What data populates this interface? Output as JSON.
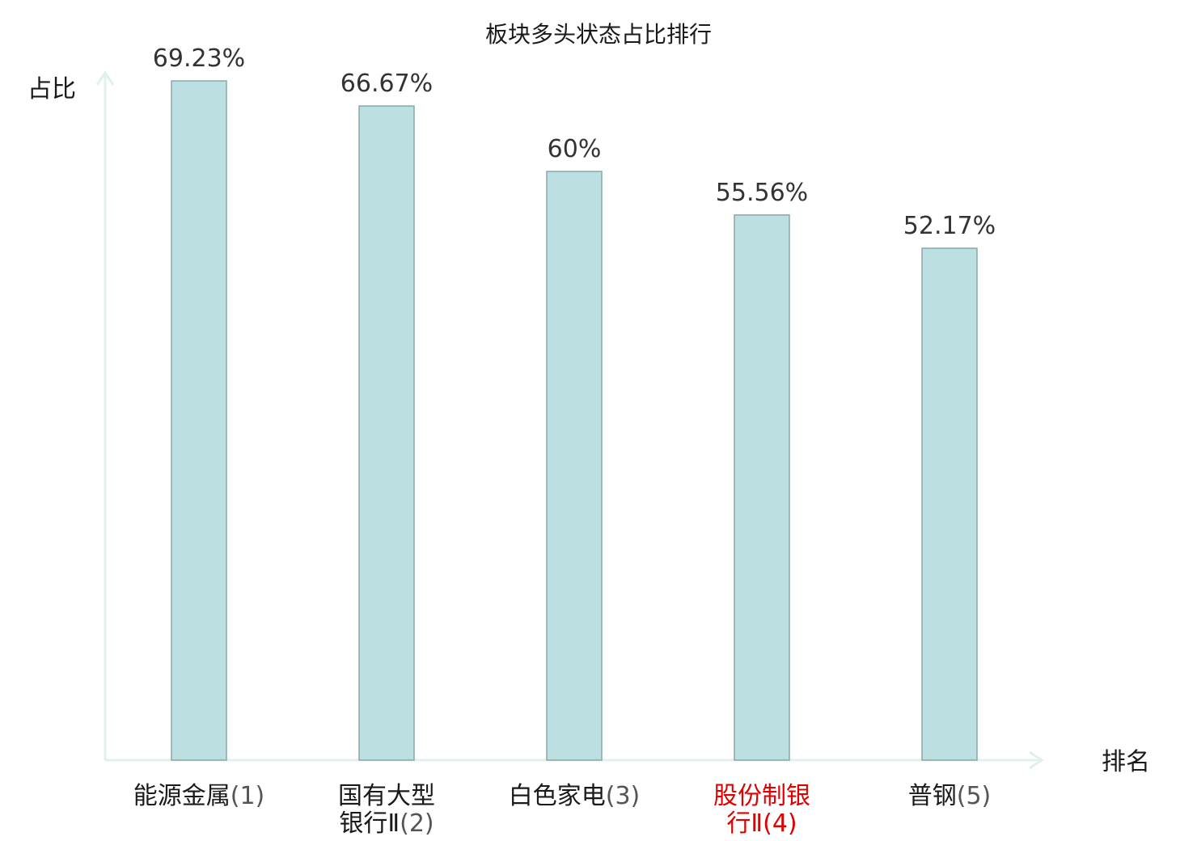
{
  "chart_data": {
    "type": "bar",
    "title": "板块多头状态占比排行",
    "ylabel": "占比",
    "xlabel": "排名",
    "categories": [
      {
        "lines": [
          "能源金属"
        ],
        "rank": "(1)",
        "highlight": false
      },
      {
        "lines": [
          "国有大型",
          "银行Ⅱ"
        ],
        "rank": "(2)",
        "highlight": false
      },
      {
        "lines": [
          "白色家电"
        ],
        "rank": "(3)",
        "highlight": false
      },
      {
        "lines": [
          "股份制银",
          "行Ⅱ"
        ],
        "rank": "(4)",
        "highlight": true
      },
      {
        "lines": [
          "普钢"
        ],
        "rank": "(5)",
        "highlight": false
      }
    ],
    "values": [
      69.23,
      66.67,
      60,
      55.56,
      52.17
    ],
    "value_labels": [
      "69.23%",
      "66.67%",
      "60%",
      "55.56%",
      "52.17%"
    ],
    "ylim": [
      0,
      69.23
    ],
    "grid": false,
    "colors": {
      "bar_fill": "#bce0e2",
      "bar_stroke": "#8aa7a8",
      "axis": "#dff0ee",
      "highlight_text": "#e00000",
      "text": "#1a1a1a"
    }
  }
}
